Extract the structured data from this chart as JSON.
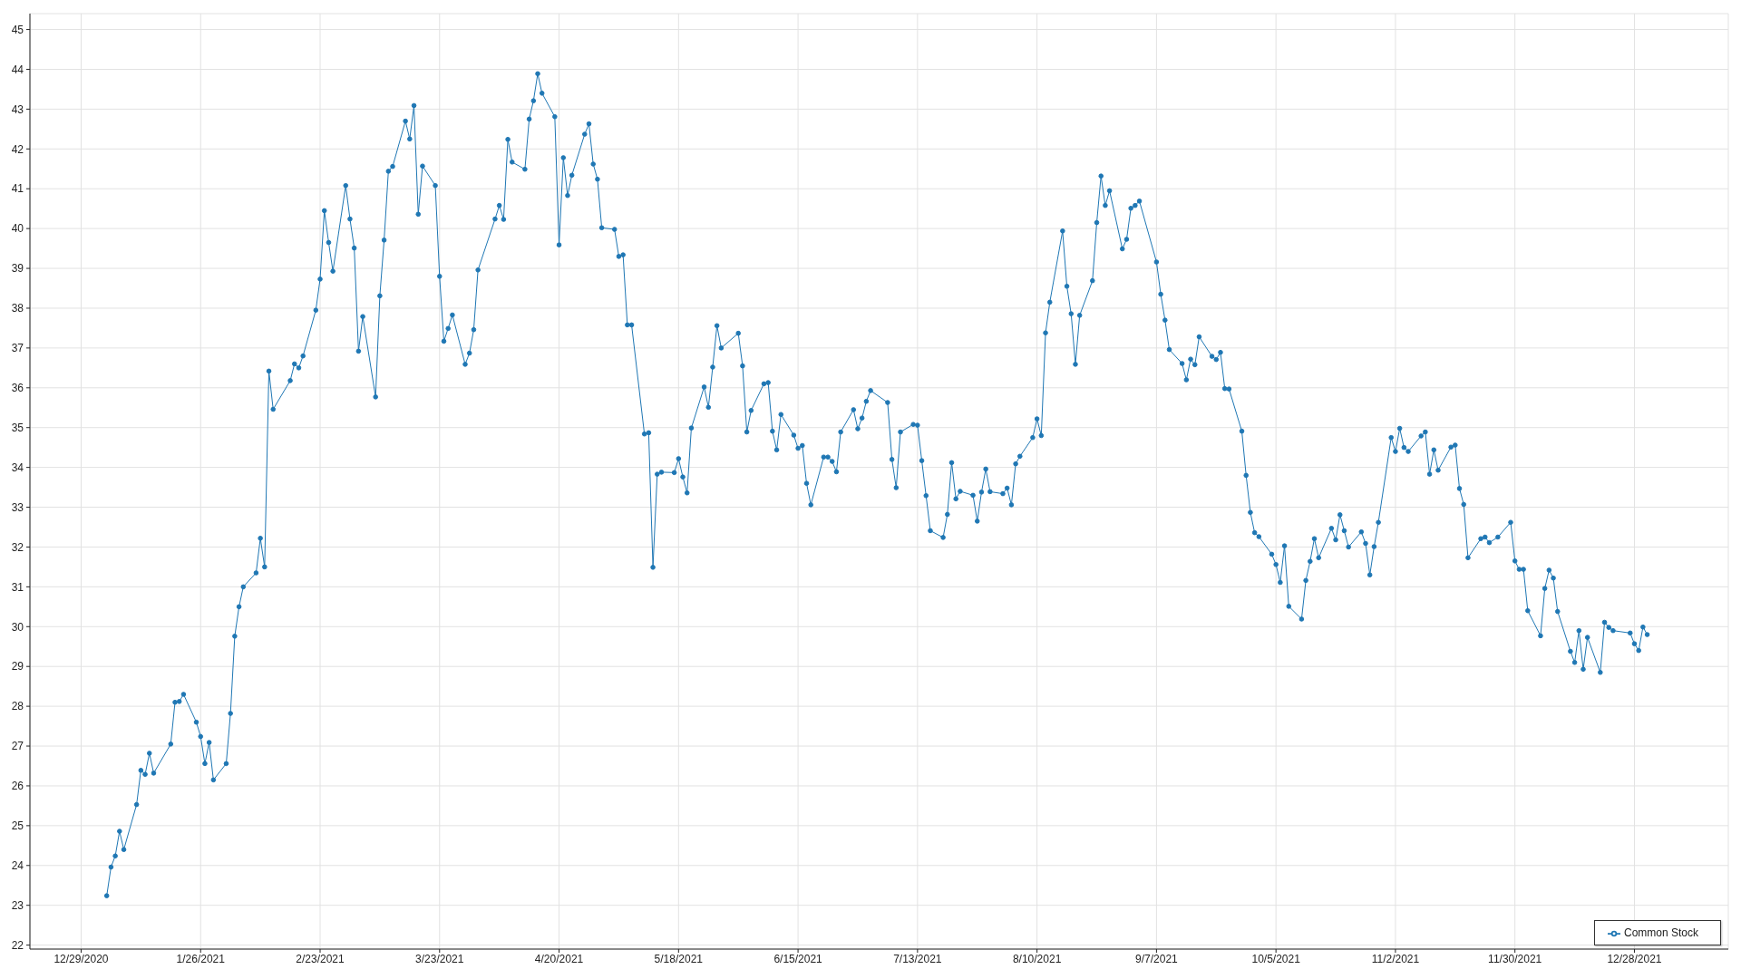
{
  "chart_data": {
    "type": "line",
    "x": [
      "2021-01-04",
      "2021-01-05",
      "2021-01-06",
      "2021-01-07",
      "2021-01-08",
      "2021-01-11",
      "2021-01-12",
      "2021-01-13",
      "2021-01-14",
      "2021-01-15",
      "2021-01-19",
      "2021-01-20",
      "2021-01-21",
      "2021-01-22",
      "2021-01-25",
      "2021-01-26",
      "2021-01-27",
      "2021-01-28",
      "2021-01-29",
      "2021-02-01",
      "2021-02-02",
      "2021-02-03",
      "2021-02-04",
      "2021-02-05",
      "2021-02-08",
      "2021-02-09",
      "2021-02-10",
      "2021-02-11",
      "2021-02-12",
      "2021-02-16",
      "2021-02-17",
      "2021-02-18",
      "2021-02-19",
      "2021-02-22",
      "2021-02-23",
      "2021-02-24",
      "2021-02-25",
      "2021-02-26",
      "2021-03-01",
      "2021-03-02",
      "2021-03-03",
      "2021-03-04",
      "2021-03-05",
      "2021-03-08",
      "2021-03-09",
      "2021-03-10",
      "2021-03-11",
      "2021-03-12",
      "2021-03-15",
      "2021-03-16",
      "2021-03-17",
      "2021-03-18",
      "2021-03-19",
      "2021-03-22",
      "2021-03-23",
      "2021-03-24",
      "2021-03-25",
      "2021-03-26",
      "2021-03-29",
      "2021-03-30",
      "2021-03-31",
      "2021-04-01",
      "2021-04-05",
      "2021-04-06",
      "2021-04-07",
      "2021-04-08",
      "2021-04-09",
      "2021-04-12",
      "2021-04-13",
      "2021-04-14",
      "2021-04-15",
      "2021-04-16",
      "2021-04-19",
      "2021-04-20",
      "2021-04-21",
      "2021-04-22",
      "2021-04-23",
      "2021-04-26",
      "2021-04-27",
      "2021-04-28",
      "2021-04-29",
      "2021-04-30",
      "2021-05-03",
      "2021-05-04",
      "2021-05-05",
      "2021-05-06",
      "2021-05-07",
      "2021-05-10",
      "2021-05-11",
      "2021-05-12",
      "2021-05-13",
      "2021-05-14",
      "2021-05-17",
      "2021-05-18",
      "2021-05-19",
      "2021-05-20",
      "2021-05-21",
      "2021-05-24",
      "2021-05-25",
      "2021-05-26",
      "2021-05-27",
      "2021-05-28",
      "2021-06-01",
      "2021-06-02",
      "2021-06-03",
      "2021-06-04",
      "2021-06-07",
      "2021-06-08",
      "2021-06-09",
      "2021-06-10",
      "2021-06-11",
      "2021-06-14",
      "2021-06-15",
      "2021-06-16",
      "2021-06-17",
      "2021-06-18",
      "2021-06-21",
      "2021-06-22",
      "2021-06-23",
      "2021-06-24",
      "2021-06-25",
      "2021-06-28",
      "2021-06-29",
      "2021-06-30",
      "2021-07-01",
      "2021-07-02",
      "2021-07-06",
      "2021-07-07",
      "2021-07-08",
      "2021-07-09",
      "2021-07-12",
      "2021-07-13",
      "2021-07-14",
      "2021-07-15",
      "2021-07-16",
      "2021-07-19",
      "2021-07-20",
      "2021-07-21",
      "2021-07-22",
      "2021-07-23",
      "2021-07-26",
      "2021-07-27",
      "2021-07-28",
      "2021-07-29",
      "2021-07-30",
      "2021-08-02",
      "2021-08-03",
      "2021-08-04",
      "2021-08-05",
      "2021-08-06",
      "2021-08-09",
      "2021-08-10",
      "2021-08-11",
      "2021-08-12",
      "2021-08-13",
      "2021-08-16",
      "2021-08-17",
      "2021-08-18",
      "2021-08-19",
      "2021-08-20",
      "2021-08-23",
      "2021-08-24",
      "2021-08-25",
      "2021-08-26",
      "2021-08-27",
      "2021-08-30",
      "2021-08-31",
      "2021-09-01",
      "2021-09-02",
      "2021-09-03",
      "2021-09-07",
      "2021-09-08",
      "2021-09-09",
      "2021-09-10",
      "2021-09-13",
      "2021-09-14",
      "2021-09-15",
      "2021-09-16",
      "2021-09-17",
      "2021-09-20",
      "2021-09-21",
      "2021-09-22",
      "2021-09-23",
      "2021-09-24",
      "2021-09-27",
      "2021-09-28",
      "2021-09-29",
      "2021-09-30",
      "2021-10-01",
      "2021-10-04",
      "2021-10-05",
      "2021-10-06",
      "2021-10-07",
      "2021-10-08",
      "2021-10-11",
      "2021-10-12",
      "2021-10-13",
      "2021-10-14",
      "2021-10-15",
      "2021-10-18",
      "2021-10-19",
      "2021-10-20",
      "2021-10-21",
      "2021-10-22",
      "2021-10-25",
      "2021-10-26",
      "2021-10-27",
      "2021-10-28",
      "2021-10-29",
      "2021-11-01",
      "2021-11-02",
      "2021-11-03",
      "2021-11-04",
      "2021-11-05",
      "2021-11-08",
      "2021-11-09",
      "2021-11-10",
      "2021-11-11",
      "2021-11-12",
      "2021-11-15",
      "2021-11-16",
      "2021-11-17",
      "2021-11-18",
      "2021-11-19",
      "2021-11-22",
      "2021-11-23",
      "2021-11-24",
      "2021-11-26",
      "2021-11-29",
      "2021-11-30",
      "2021-12-01",
      "2021-12-02",
      "2021-12-03",
      "2021-12-06",
      "2021-12-07",
      "2021-12-08",
      "2021-12-09",
      "2021-12-10",
      "2021-12-13",
      "2021-12-14",
      "2021-12-15",
      "2021-12-16",
      "2021-12-17",
      "2021-12-20",
      "2021-12-21",
      "2021-12-22",
      "2021-12-23",
      "2021-12-27",
      "2021-12-28",
      "2021-12-29",
      "2021-12-30",
      "2021-12-31"
    ],
    "series": [
      {
        "name": "Common Stock",
        "color": "#1f77b4",
        "values": [
          23.24,
          23.96,
          24.24,
          24.86,
          24.4,
          25.53,
          26.39,
          26.29,
          26.82,
          26.32,
          27.05,
          28.1,
          28.12,
          28.3,
          27.6,
          27.24,
          26.56,
          27.09,
          26.15,
          26.56,
          27.82,
          29.76,
          30.5,
          31.0,
          31.35,
          32.22,
          31.5,
          36.42,
          35.46,
          36.18,
          36.6,
          36.5,
          36.8,
          37.95,
          38.73,
          40.45,
          39.65,
          38.93,
          41.08,
          40.24,
          39.51,
          36.92,
          37.79,
          35.77,
          38.31,
          39.71,
          41.44,
          41.56,
          42.7,
          42.25,
          43.09,
          40.36,
          41.57,
          41.08,
          38.8,
          37.17,
          37.49,
          37.83,
          36.59,
          36.87,
          37.46,
          38.96,
          40.24,
          40.58,
          40.23,
          42.24,
          41.67,
          41.49,
          42.75,
          43.21,
          43.89,
          43.4,
          42.81,
          39.59,
          41.78,
          40.83,
          41.34,
          42.37,
          42.63,
          41.62,
          41.24,
          40.02,
          39.98,
          39.3,
          39.34,
          37.58,
          37.58,
          34.84,
          34.87,
          31.49,
          33.83,
          33.88,
          33.87,
          34.22,
          33.76,
          33.36,
          34.99,
          36.02,
          35.51,
          36.52,
          37.56,
          37.0,
          37.37,
          36.55,
          34.89,
          35.43,
          36.1,
          36.13,
          34.91,
          34.44,
          35.33,
          34.81,
          34.48,
          34.55,
          33.6,
          33.06,
          34.26,
          34.26,
          34.15,
          33.89,
          34.89,
          35.45,
          34.97,
          35.24,
          35.66,
          35.93,
          35.63,
          34.2,
          33.49,
          34.89,
          35.08,
          35.06,
          34.17,
          33.29,
          32.41,
          32.24,
          32.82,
          34.12,
          33.21,
          33.4,
          33.3,
          32.65,
          33.38,
          33.96,
          33.39,
          33.34,
          33.48,
          33.06,
          34.09,
          34.28,
          34.75,
          35.22,
          34.8,
          37.38,
          38.15,
          39.94,
          38.55,
          37.86,
          36.59,
          37.82,
          38.69,
          40.15,
          41.32,
          40.58,
          40.95,
          39.49,
          39.73,
          40.51,
          40.58,
          40.69,
          39.16,
          38.35,
          37.7,
          36.96,
          36.61,
          36.2,
          36.72,
          36.58,
          37.28,
          36.79,
          36.71,
          36.89,
          35.98,
          35.97,
          34.91,
          33.8,
          32.87,
          32.36,
          32.26,
          31.82,
          31.56,
          31.11,
          32.03,
          30.51,
          30.19,
          31.16,
          31.64,
          32.21,
          31.73,
          32.47,
          32.18,
          32.81,
          32.41,
          32.0,
          32.38,
          32.09,
          31.3,
          32.01,
          32.62,
          34.75,
          34.4,
          34.98,
          34.5,
          34.4,
          34.79,
          34.89,
          33.83,
          34.44,
          33.93,
          34.51,
          34.56,
          33.47,
          33.07,
          31.73,
          32.21,
          32.25,
          32.11,
          32.25,
          32.62,
          31.65,
          31.44,
          31.44,
          30.4,
          29.77,
          30.96,
          31.42,
          31.22,
          30.38,
          29.38,
          29.1,
          29.9,
          28.93,
          29.73,
          28.85,
          30.11,
          29.98,
          29.9,
          29.84,
          29.57,
          29.4,
          29.99,
          29.8
        ]
      }
    ],
    "xlim": [
      "2020-12-17",
      "2022-01-19"
    ],
    "xticks": [
      {
        "value": "2020-12-29",
        "label": "12/29/2020"
      },
      {
        "value": "2021-01-26",
        "label": "1/26/2021"
      },
      {
        "value": "2021-02-23",
        "label": "2/23/2021"
      },
      {
        "value": "2021-03-23",
        "label": "3/23/2021"
      },
      {
        "value": "2021-04-20",
        "label": "4/20/2021"
      },
      {
        "value": "2021-05-18",
        "label": "5/18/2021"
      },
      {
        "value": "2021-06-15",
        "label": "6/15/2021"
      },
      {
        "value": "2021-07-13",
        "label": "7/13/2021"
      },
      {
        "value": "2021-08-10",
        "label": "8/10/2021"
      },
      {
        "value": "2021-09-07",
        "label": "9/7/2021"
      },
      {
        "value": "2021-10-05",
        "label": "10/5/2021"
      },
      {
        "value": "2021-11-02",
        "label": "11/2/2021"
      },
      {
        "value": "2021-11-30",
        "label": "11/30/2021"
      },
      {
        "value": "2021-12-28",
        "label": "12/28/2021"
      }
    ],
    "ylim": [
      21.9,
      45.4
    ],
    "yticks": [
      22,
      23,
      24,
      25,
      26,
      27,
      28,
      29,
      30,
      31,
      32,
      33,
      34,
      35,
      36,
      37,
      38,
      39,
      40,
      41,
      42,
      43,
      44,
      45
    ],
    "grid": true,
    "legend": "bottom right",
    "marker": "circle",
    "line_style": "solid"
  }
}
